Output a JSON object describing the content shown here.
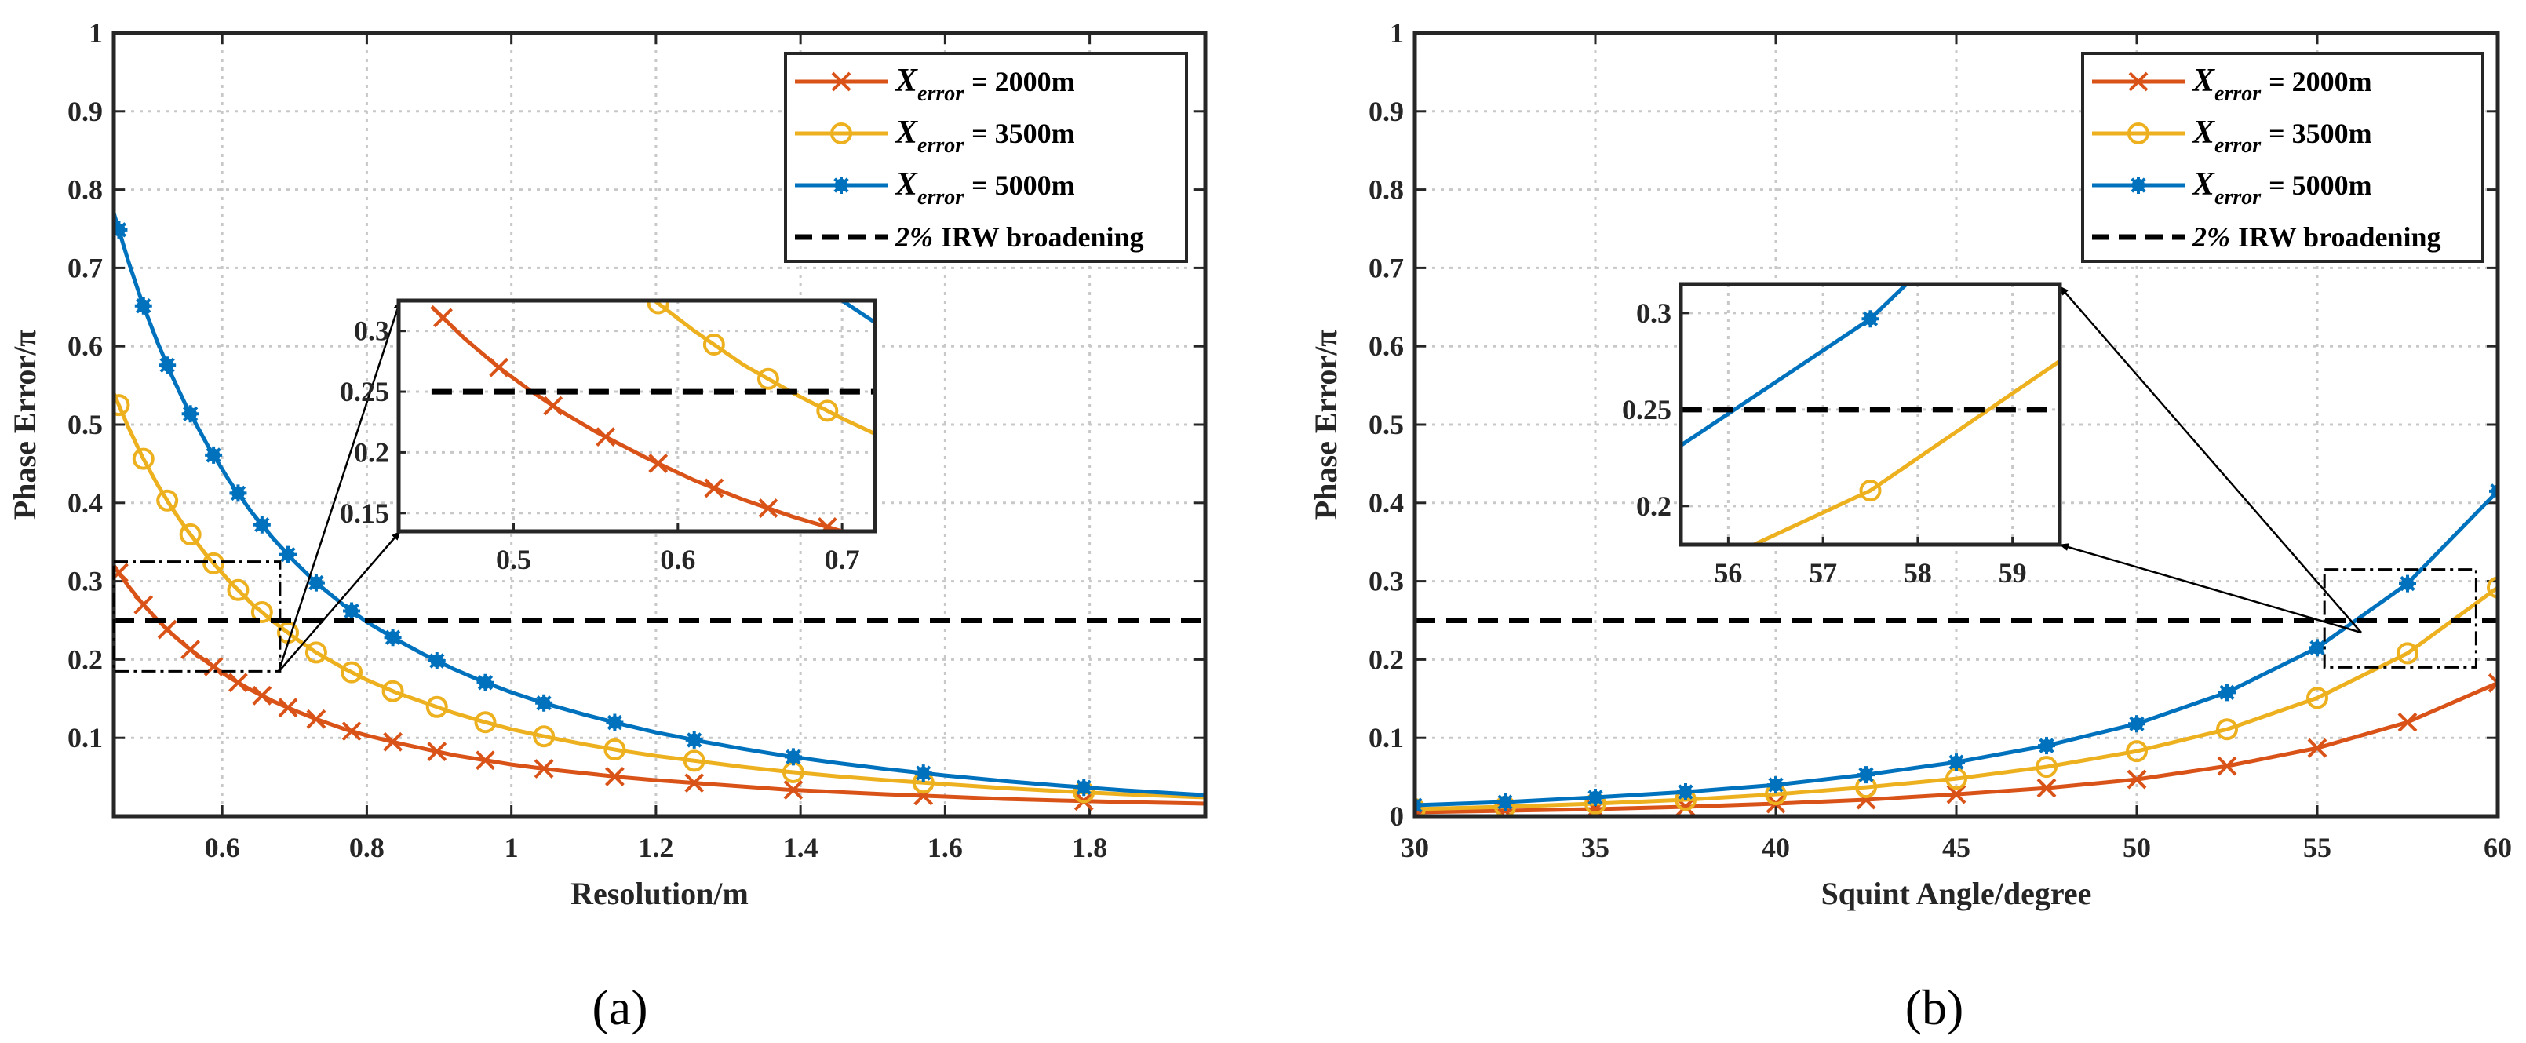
{
  "chart_data": [
    {
      "type": "line",
      "subfig_label": "(a)",
      "xlabel": "Resolution/m",
      "ylabel": "Phase Error/π",
      "xlim": [
        0.45,
        1.96
      ],
      "ylim": [
        0,
        1
      ],
      "xticks": [
        "0.6",
        "0.8",
        "1",
        "1.2",
        "1.4",
        "1.6",
        "1.8"
      ],
      "yticks": [
        "0.1",
        "0.2",
        "0.3",
        "0.4",
        "0.5",
        "0.6",
        "0.7",
        "0.8",
        "0.9",
        "1"
      ],
      "grid": true,
      "legend_position": "top-right",
      "series": [
        {
          "name": "X_error = 2000m",
          "legend_prefix": "X",
          "legend_sub": "error",
          "legend_suffix": "= 2000m",
          "color": "#D95319",
          "marker": "x",
          "x": [
            0.45,
            0.47,
            0.49,
            0.51,
            0.53,
            0.55,
            0.58,
            0.61,
            0.64,
            0.67,
            0.7,
            0.73,
            0.77,
            0.8,
            0.84,
            0.88,
            0.92,
            0.96,
            1.0,
            1.05,
            1.1,
            1.15,
            1.2,
            1.26,
            1.32,
            1.38,
            1.45,
            1.52,
            1.6,
            1.68,
            1.76,
            1.85,
            1.96
          ],
          "y": [
            0.32,
            0.294,
            0.271,
            0.251,
            0.233,
            0.217,
            0.196,
            0.177,
            0.161,
            0.147,
            0.135,
            0.124,
            0.111,
            0.103,
            0.094,
            0.086,
            0.078,
            0.072,
            0.066,
            0.06,
            0.055,
            0.05,
            0.046,
            0.042,
            0.038,
            0.034,
            0.031,
            0.028,
            0.025,
            0.022,
            0.02,
            0.018,
            0.016
          ],
          "marker_x": [
            0.457,
            0.491,
            0.524,
            0.556,
            0.588,
            0.622,
            0.655,
            0.691,
            0.73,
            0.779,
            0.836,
            0.897,
            0.964,
            1.045,
            1.143,
            1.253,
            1.39,
            1.57,
            1.792
          ]
        },
        {
          "name": "X_error = 3500m",
          "legend_prefix": "X",
          "legend_sub": "error",
          "legend_suffix": "= 3500m",
          "color": "#EDB120",
          "marker": "o",
          "x": [
            0.45,
            0.47,
            0.49,
            0.51,
            0.53,
            0.55,
            0.58,
            0.61,
            0.64,
            0.67,
            0.7,
            0.73,
            0.77,
            0.8,
            0.84,
            0.88,
            0.92,
            0.96,
            1.0,
            1.05,
            1.1,
            1.15,
            1.2,
            1.26,
            1.32,
            1.38,
            1.45,
            1.52,
            1.6,
            1.68,
            1.76,
            1.85,
            1.96
          ],
          "y": [
            0.54,
            0.497,
            0.458,
            0.424,
            0.394,
            0.367,
            0.331,
            0.3,
            0.272,
            0.249,
            0.228,
            0.209,
            0.188,
            0.174,
            0.158,
            0.145,
            0.132,
            0.121,
            0.111,
            0.101,
            0.092,
            0.084,
            0.077,
            0.07,
            0.063,
            0.057,
            0.051,
            0.046,
            0.041,
            0.036,
            0.032,
            0.028,
            0.024
          ],
          "marker_x": [
            0.457,
            0.491,
            0.524,
            0.556,
            0.588,
            0.622,
            0.655,
            0.691,
            0.73,
            0.779,
            0.836,
            0.897,
            0.964,
            1.045,
            1.143,
            1.253,
            1.39,
            1.57,
            1.792
          ]
        },
        {
          "name": "X_error = 5000m",
          "legend_prefix": "X",
          "legend_sub": "error",
          "legend_suffix": "= 5000m",
          "color": "#0072BD",
          "marker": "*",
          "x": [
            0.45,
            0.47,
            0.49,
            0.51,
            0.53,
            0.55,
            0.58,
            0.61,
            0.64,
            0.67,
            0.7,
            0.73,
            0.77,
            0.8,
            0.84,
            0.88,
            0.92,
            0.96,
            1.0,
            1.05,
            1.1,
            1.15,
            1.2,
            1.26,
            1.32,
            1.38,
            1.45,
            1.52,
            1.6,
            1.68,
            1.76,
            1.85,
            1.96
          ],
          "y": [
            0.77,
            0.709,
            0.654,
            0.606,
            0.563,
            0.524,
            0.473,
            0.428,
            0.389,
            0.355,
            0.325,
            0.298,
            0.268,
            0.248,
            0.226,
            0.206,
            0.188,
            0.172,
            0.158,
            0.143,
            0.13,
            0.118,
            0.107,
            0.096,
            0.086,
            0.077,
            0.068,
            0.06,
            0.052,
            0.045,
            0.039,
            0.033,
            0.027
          ],
          "marker_x": [
            0.457,
            0.491,
            0.524,
            0.556,
            0.588,
            0.622,
            0.655,
            0.691,
            0.73,
            0.779,
            0.836,
            0.897,
            0.964,
            1.045,
            1.143,
            1.253,
            1.39,
            1.57,
            1.792
          ]
        },
        {
          "name": "2% IRW broadening",
          "legend_pct": "2%",
          "legend_rest": "IRW broadening",
          "color": "#000000",
          "style": "dashed",
          "x": [
            0.45,
            1.96
          ],
          "y": [
            0.25,
            0.25
          ]
        }
      ],
      "zoom_region": {
        "xlim": [
          0.45,
          0.68
        ],
        "ylim": [
          0.185,
          0.325
        ]
      },
      "inset": {
        "xlim": [
          0.43,
          0.72
        ],
        "ylim": [
          0.135,
          0.325
        ],
        "xticks": [
          "0.5",
          "0.6",
          "0.7"
        ],
        "yticks": [
          "0.15",
          "0.2",
          "0.25",
          "0.3"
        ]
      }
    },
    {
      "type": "line",
      "subfig_label": "(b)",
      "xlabel": "Squint Angle/degree",
      "ylabel": "Phase Error/π",
      "xlim": [
        30,
        60
      ],
      "ylim": [
        0,
        1
      ],
      "xticks": [
        "30",
        "35",
        "40",
        "45",
        "50",
        "55",
        "60"
      ],
      "yticks": [
        "0",
        "0.1",
        "0.2",
        "0.3",
        "0.4",
        "0.5",
        "0.6",
        "0.7",
        "0.8",
        "0.9",
        "1"
      ],
      "grid": true,
      "legend_position": "top-right",
      "series": [
        {
          "name": "X_error = 2000m",
          "legend_prefix": "X",
          "legend_sub": "error",
          "legend_suffix": "= 2000m",
          "color": "#D95319",
          "marker": "x",
          "x": [
            30,
            32.5,
            35,
            37.5,
            40,
            42.5,
            45,
            47.5,
            50,
            52.5,
            55,
            57.5,
            60
          ],
          "y": [
            0.005,
            0.007,
            0.009,
            0.012,
            0.016,
            0.021,
            0.028,
            0.036,
            0.047,
            0.064,
            0.087,
            0.12,
            0.17
          ],
          "marker_x": [
            30,
            32.5,
            35,
            37.5,
            40,
            42.5,
            45,
            47.5,
            50,
            52.5,
            55,
            57.5,
            60
          ]
        },
        {
          "name": "X_error = 3500m",
          "legend_prefix": "X",
          "legend_sub": "error",
          "legend_suffix": "= 3500m",
          "color": "#EDB120",
          "marker": "o",
          "x": [
            30,
            32.5,
            35,
            37.5,
            40,
            42.5,
            45,
            47.5,
            50,
            52.5,
            55,
            57.5,
            60
          ],
          "y": [
            0.009,
            0.012,
            0.016,
            0.021,
            0.028,
            0.037,
            0.048,
            0.063,
            0.083,
            0.111,
            0.151,
            0.208,
            0.292
          ],
          "marker_x": [
            30,
            32.5,
            35,
            37.5,
            40,
            42.5,
            45,
            47.5,
            50,
            52.5,
            55,
            57.5,
            60
          ]
        },
        {
          "name": "X_error = 5000m",
          "legend_prefix": "X",
          "legend_sub": "error",
          "legend_suffix": "= 5000m",
          "color": "#0072BD",
          "marker": "*",
          "x": [
            30,
            32.5,
            35,
            37.5,
            40,
            42.5,
            45,
            47.5,
            50,
            52.5,
            55,
            57.5,
            60
          ],
          "y": [
            0.014,
            0.018,
            0.024,
            0.031,
            0.04,
            0.053,
            0.069,
            0.09,
            0.118,
            0.158,
            0.215,
            0.297,
            0.415
          ],
          "marker_x": [
            30,
            32.5,
            35,
            37.5,
            40,
            42.5,
            45,
            47.5,
            50,
            52.5,
            55,
            57.5,
            60
          ]
        },
        {
          "name": "2% IRW broadening",
          "legend_pct": "2%",
          "legend_rest": "IRW broadening",
          "color": "#000000",
          "style": "dashed",
          "x": [
            30,
            60
          ],
          "y": [
            0.25,
            0.25
          ]
        }
      ],
      "zoom_region": {
        "xlim": [
          55.2,
          59.4
        ],
        "ylim": [
          0.19,
          0.315
        ]
      },
      "inset": {
        "xlim": [
          55.5,
          59.5
        ],
        "ylim": [
          0.18,
          0.315
        ],
        "xticks": [
          "56",
          "57",
          "58",
          "59"
        ],
        "yticks": [
          "0.2",
          "0.25",
          "0.3"
        ]
      }
    }
  ]
}
